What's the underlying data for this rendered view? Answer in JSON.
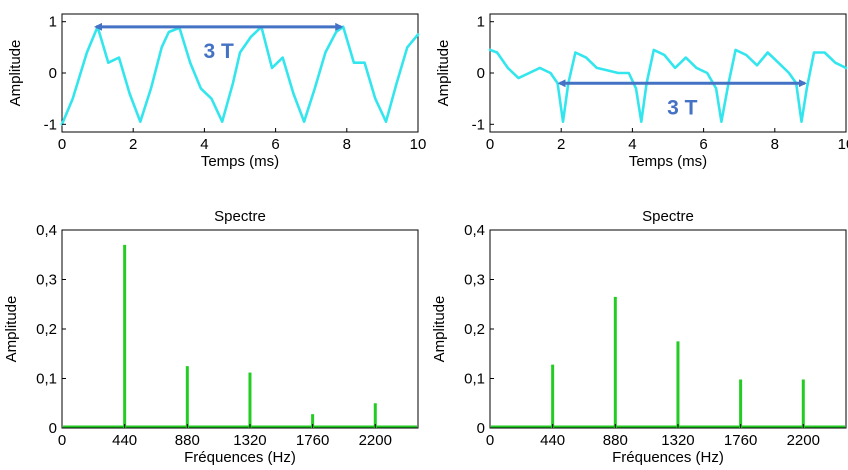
{
  "colors": {
    "waveform": "#33e6ee",
    "spectrum": "#22cc22",
    "annotation": "#4472c4",
    "frame": "#000000"
  },
  "chart_data": [
    {
      "type": "line",
      "title": "",
      "xlabel": "Temps (ms)",
      "ylabel": "Amplitude",
      "xlim": [
        0,
        10
      ],
      "ylim": [
        -1.15,
        1.15
      ],
      "x_ticks": [
        "0",
        "2",
        "4",
        "6",
        "8",
        "10"
      ],
      "y_ticks": [
        "-1",
        "0",
        "1"
      ],
      "series": [
        {
          "x": [
            0,
            0.3,
            0.7,
            1.0,
            1.3,
            1.6,
            1.9,
            2.2,
            2.5,
            2.8,
            3.0,
            3.3,
            3.6,
            3.9,
            4.2,
            4.5,
            4.8,
            5.0,
            5.3,
            5.6,
            5.9,
            6.2,
            6.5,
            6.8,
            7.1,
            7.4,
            7.7,
            7.9,
            8.2,
            8.5,
            8.8,
            9.1,
            9.4,
            9.7,
            10.0
          ],
          "y": [
            -1.0,
            -0.5,
            0.4,
            0.9,
            0.2,
            0.3,
            -0.4,
            -0.95,
            -0.3,
            0.5,
            0.8,
            0.88,
            0.2,
            -0.3,
            -0.5,
            -0.95,
            -0.2,
            0.4,
            0.7,
            0.9,
            0.1,
            0.3,
            -0.4,
            -0.95,
            -0.3,
            0.4,
            0.8,
            0.9,
            0.2,
            0.2,
            -0.5,
            -0.95,
            -0.2,
            0.5,
            0.75
          ]
        }
      ],
      "annotation": {
        "label": "3 T",
        "x_start": 0.9,
        "x_end": 7.9,
        "y": 0.9
      }
    },
    {
      "type": "line",
      "title": "",
      "xlabel": "Temps (ms)",
      "ylabel": "Amplitude",
      "xlim": [
        0,
        10
      ],
      "ylim": [
        -1.15,
        1.15
      ],
      "x_ticks": [
        "0",
        "2",
        "4",
        "6",
        "8",
        "10"
      ],
      "y_ticks": [
        "-1",
        "0",
        "1"
      ],
      "series": [
        {
          "x": [
            0,
            0.2,
            0.5,
            0.8,
            1.1,
            1.4,
            1.7,
            1.9,
            2.05,
            2.2,
            2.4,
            2.7,
            3.0,
            3.3,
            3.6,
            3.9,
            4.1,
            4.25,
            4.4,
            4.6,
            4.9,
            5.2,
            5.5,
            5.8,
            6.1,
            6.35,
            6.5,
            6.7,
            6.9,
            7.2,
            7.5,
            7.8,
            8.1,
            8.4,
            8.6,
            8.75,
            8.9,
            9.1,
            9.4,
            9.7,
            10.0
          ],
          "y": [
            0.45,
            0.4,
            0.1,
            -0.1,
            0.0,
            0.1,
            0.0,
            -0.2,
            -0.95,
            -0.2,
            0.4,
            0.3,
            0.1,
            0.05,
            0.0,
            0.0,
            -0.3,
            -0.95,
            -0.2,
            0.45,
            0.35,
            0.1,
            0.3,
            0.1,
            0.0,
            -0.3,
            -0.95,
            -0.2,
            0.45,
            0.35,
            0.15,
            0.4,
            0.2,
            0.0,
            -0.2,
            -0.95,
            -0.3,
            0.4,
            0.4,
            0.2,
            0.1
          ]
        }
      ],
      "annotation": {
        "label": "3 T",
        "x_start": 1.9,
        "x_end": 8.9,
        "y": -0.2
      }
    },
    {
      "type": "bar",
      "title": "Spectre",
      "xlabel": "Fréquences (Hz)",
      "ylabel": "Amplitude",
      "xlim": [
        0,
        2500
      ],
      "ylim": [
        0,
        0.4
      ],
      "x_ticks": [
        "0",
        "440",
        "880",
        "1320",
        "1760",
        "2200"
      ],
      "y_ticks": [
        "0",
        "0,1",
        "0,2",
        "0,3",
        "0,4"
      ],
      "series": [
        {
          "x": [
            440,
            880,
            1320,
            1760,
            2200
          ],
          "values": [
            0.37,
            0.125,
            0.112,
            0.028,
            0.05
          ]
        }
      ]
    },
    {
      "type": "bar",
      "title": "Spectre",
      "xlabel": "Fréquences (Hz)",
      "ylabel": "Amplitude",
      "xlim": [
        0,
        2500
      ],
      "ylim": [
        0,
        0.4
      ],
      "x_ticks": [
        "0",
        "440",
        "880",
        "1320",
        "1760",
        "2200"
      ],
      "y_ticks": [
        "0",
        "0,1",
        "0,2",
        "0,3",
        "0,4"
      ],
      "series": [
        {
          "x": [
            440,
            880,
            1320,
            1760,
            2200
          ],
          "values": [
            0.128,
            0.265,
            0.175,
            0.098,
            0.098
          ]
        }
      ]
    }
  ]
}
